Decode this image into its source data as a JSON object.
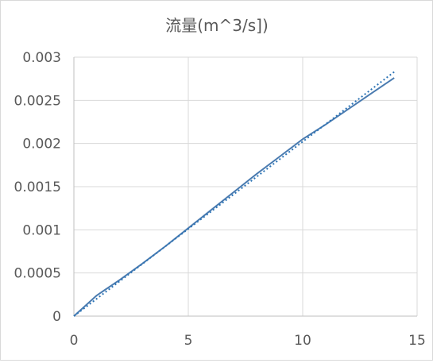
{
  "chart_data": {
    "type": "line",
    "title": "流量(m^3/s])",
    "xlabel": "",
    "ylabel": "",
    "xlim": [
      0,
      15
    ],
    "ylim": [
      0,
      0.003
    ],
    "x_ticks": [
      0,
      5,
      10,
      15
    ],
    "x_tick_labels": [
      "0",
      "5",
      "10",
      "15"
    ],
    "y_ticks": [
      0,
      0.0005,
      0.001,
      0.0015,
      0.002,
      0.0025,
      0.003
    ],
    "y_tick_labels": [
      "0",
      "0.0005",
      "0.001",
      "0.0015",
      "0.002",
      "0.0025",
      "0.003"
    ],
    "grid": true,
    "legend": "none",
    "series": [
      {
        "style": "solid",
        "color": "#4a7bb0",
        "x": [
          0,
          1,
          2,
          3,
          4,
          5,
          6,
          7,
          8,
          9,
          10,
          11,
          12,
          13,
          14
        ],
        "y": [
          0,
          0.00024,
          0.00042,
          0.00061,
          0.00081,
          0.00102,
          0.00123,
          0.00144,
          0.00165,
          0.00185,
          0.00205,
          0.00222,
          0.0024,
          0.00258,
          0.00276
        ]
      },
      {
        "style": "dotted",
        "color": "#2e75b6",
        "x": [
          0,
          14
        ],
        "y": [
          0,
          0.00283
        ]
      }
    ]
  }
}
